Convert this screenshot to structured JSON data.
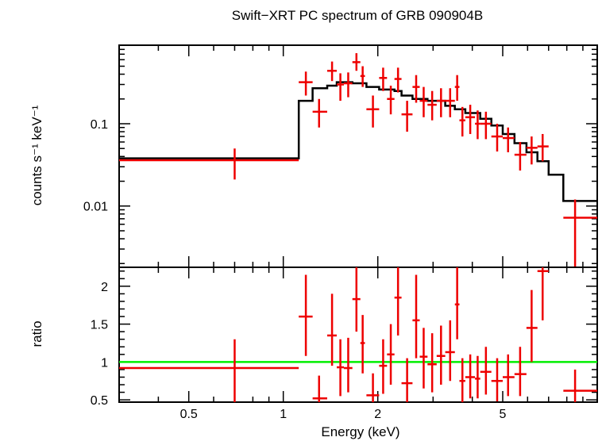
{
  "title": "Swift−XRT PC spectrum of GRB 090904B",
  "colors": {
    "data": "#ee0000",
    "model": "#000000",
    "unity": "#00ee00",
    "axes": "#000000"
  },
  "chart_data": [
    {
      "type": "line",
      "panel": "spectrum",
      "title": "Swift−XRT PC spectrum of GRB 090904B",
      "xlabel": "",
      "ylabel": "counts s⁻¹ keV⁻¹",
      "xscale": "log",
      "yscale": "log",
      "xlim": [
        0.3,
        10
      ],
      "ylim": [
        0.0018,
        0.9
      ],
      "ytick_values": [
        0.01,
        0.1
      ],
      "ytick_labels": [
        "0.01",
        "0.1"
      ],
      "data_points": [
        {
          "x": 0.7,
          "xlo": 0.3,
          "xhi": 1.12,
          "y": 0.036,
          "ylo": 0.021,
          "yhi": 0.05
        },
        {
          "x": 1.18,
          "xlo": 1.12,
          "xhi": 1.24,
          "y": 0.32,
          "ylo": 0.22,
          "yhi": 0.43
        },
        {
          "x": 1.3,
          "xlo": 1.24,
          "xhi": 1.38,
          "y": 0.14,
          "ylo": 0.09,
          "yhi": 0.2
        },
        {
          "x": 1.43,
          "xlo": 1.38,
          "xhi": 1.48,
          "y": 0.44,
          "ylo": 0.33,
          "yhi": 0.57
        },
        {
          "x": 1.52,
          "xlo": 1.48,
          "xhi": 1.56,
          "y": 0.3,
          "ylo": 0.19,
          "yhi": 0.41
        },
        {
          "x": 1.61,
          "xlo": 1.56,
          "xhi": 1.66,
          "y": 0.31,
          "ylo": 0.21,
          "yhi": 0.42
        },
        {
          "x": 1.71,
          "xlo": 1.66,
          "xhi": 1.76,
          "y": 0.56,
          "ylo": 0.44,
          "yhi": 0.72
        },
        {
          "x": 1.79,
          "xlo": 1.76,
          "xhi": 1.82,
          "y": 0.38,
          "ylo": 0.28,
          "yhi": 0.5
        },
        {
          "x": 1.93,
          "xlo": 1.84,
          "xhi": 2.02,
          "y": 0.15,
          "ylo": 0.09,
          "yhi": 0.22
        },
        {
          "x": 2.08,
          "xlo": 2.02,
          "xhi": 2.14,
          "y": 0.36,
          "ylo": 0.25,
          "yhi": 0.48
        },
        {
          "x": 2.2,
          "xlo": 2.14,
          "xhi": 2.26,
          "y": 0.2,
          "ylo": 0.13,
          "yhi": 0.29
        },
        {
          "x": 2.32,
          "xlo": 2.26,
          "xhi": 2.38,
          "y": 0.35,
          "ylo": 0.24,
          "yhi": 0.48
        },
        {
          "x": 2.48,
          "xlo": 2.38,
          "xhi": 2.58,
          "y": 0.13,
          "ylo": 0.08,
          "yhi": 0.19
        },
        {
          "x": 2.65,
          "xlo": 2.58,
          "xhi": 2.72,
          "y": 0.28,
          "ylo": 0.18,
          "yhi": 0.39
        },
        {
          "x": 2.8,
          "xlo": 2.72,
          "xhi": 2.88,
          "y": 0.19,
          "ylo": 0.12,
          "yhi": 0.28
        },
        {
          "x": 2.98,
          "xlo": 2.88,
          "xhi": 3.08,
          "y": 0.17,
          "ylo": 0.11,
          "yhi": 0.25
        },
        {
          "x": 3.18,
          "xlo": 3.08,
          "xhi": 3.28,
          "y": 0.19,
          "ylo": 0.12,
          "yhi": 0.27
        },
        {
          "x": 3.4,
          "xlo": 3.28,
          "xhi": 3.52,
          "y": 0.19,
          "ylo": 0.12,
          "yhi": 0.27
        },
        {
          "x": 3.58,
          "xlo": 3.52,
          "xhi": 3.64,
          "y": 0.28,
          "ylo": 0.19,
          "yhi": 0.39
        },
        {
          "x": 3.72,
          "xlo": 3.64,
          "xhi": 3.8,
          "y": 0.11,
          "ylo": 0.07,
          "yhi": 0.16
        },
        {
          "x": 3.94,
          "xlo": 3.8,
          "xhi": 4.08,
          "y": 0.12,
          "ylo": 0.075,
          "yhi": 0.17
        },
        {
          "x": 4.16,
          "xlo": 4.08,
          "xhi": 4.24,
          "y": 0.1,
          "ylo": 0.065,
          "yhi": 0.145
        },
        {
          "x": 4.42,
          "xlo": 4.24,
          "xhi": 4.6,
          "y": 0.1,
          "ylo": 0.065,
          "yhi": 0.14
        },
        {
          "x": 4.8,
          "xlo": 4.6,
          "xhi": 5.0,
          "y": 0.07,
          "ylo": 0.046,
          "yhi": 0.1
        },
        {
          "x": 5.2,
          "xlo": 5.0,
          "xhi": 5.45,
          "y": 0.067,
          "ylo": 0.045,
          "yhi": 0.09
        },
        {
          "x": 5.68,
          "xlo": 5.45,
          "xhi": 5.95,
          "y": 0.042,
          "ylo": 0.027,
          "yhi": 0.06
        },
        {
          "x": 6.18,
          "xlo": 5.95,
          "xhi": 6.45,
          "y": 0.051,
          "ylo": 0.032,
          "yhi": 0.07
        },
        {
          "x": 6.7,
          "xlo": 6.45,
          "xhi": 7.0,
          "y": 0.053,
          "ylo": 0.035,
          "yhi": 0.075
        },
        {
          "x": 8.5,
          "xlo": 7.8,
          "xhi": 10.0,
          "y": 0.0072,
          "ylo": 0.0018,
          "yhi": 0.012
        }
      ],
      "model_steps": [
        {
          "xlo": 0.3,
          "xhi": 1.12,
          "y": 0.038
        },
        {
          "xlo": 1.12,
          "xhi": 1.24,
          "y": 0.19
        },
        {
          "xlo": 1.24,
          "xhi": 1.38,
          "y": 0.27
        },
        {
          "xlo": 1.38,
          "xhi": 1.48,
          "y": 0.29
        },
        {
          "xlo": 1.48,
          "xhi": 1.66,
          "y": 0.32
        },
        {
          "xlo": 1.66,
          "xhi": 1.84,
          "y": 0.31
        },
        {
          "xlo": 1.84,
          "xhi": 2.02,
          "y": 0.28
        },
        {
          "xlo": 2.02,
          "xhi": 2.26,
          "y": 0.26
        },
        {
          "xlo": 2.26,
          "xhi": 2.38,
          "y": 0.25
        },
        {
          "xlo": 2.38,
          "xhi": 2.58,
          "y": 0.22
        },
        {
          "xlo": 2.58,
          "xhi": 2.88,
          "y": 0.2
        },
        {
          "xlo": 2.88,
          "xhi": 3.28,
          "y": 0.19
        },
        {
          "xlo": 3.28,
          "xhi": 3.52,
          "y": 0.165
        },
        {
          "xlo": 3.52,
          "xhi": 3.8,
          "y": 0.15
        },
        {
          "xlo": 3.8,
          "xhi": 4.24,
          "y": 0.135
        },
        {
          "xlo": 4.24,
          "xhi": 4.6,
          "y": 0.115
        },
        {
          "xlo": 4.6,
          "xhi": 5.0,
          "y": 0.095
        },
        {
          "xlo": 5.0,
          "xhi": 5.45,
          "y": 0.075
        },
        {
          "xlo": 5.45,
          "xhi": 5.95,
          "y": 0.058
        },
        {
          "xlo": 5.95,
          "xhi": 6.45,
          "y": 0.045
        },
        {
          "xlo": 6.45,
          "xhi": 7.0,
          "y": 0.035
        },
        {
          "xlo": 7.0,
          "xhi": 7.8,
          "y": 0.024
        },
        {
          "xlo": 7.8,
          "xhi": 10.0,
          "y": 0.0115
        }
      ]
    },
    {
      "type": "line",
      "panel": "ratio",
      "xlabel": "Energy (keV)",
      "ylabel": "ratio",
      "xscale": "log",
      "yscale": "linear",
      "xlim": [
        0.3,
        10
      ],
      "ylim": [
        0.47,
        2.25
      ],
      "xtick_values": [
        0.5,
        1,
        2,
        5
      ],
      "xtick_labels": [
        "0.5",
        "1",
        "2",
        "5"
      ],
      "ytick_values": [
        0.5,
        1,
        1.5,
        2
      ],
      "ytick_labels": [
        "0.5",
        "1",
        "1.5",
        "2"
      ],
      "unity_line": 1,
      "data_points": [
        {
          "x": 0.7,
          "xlo": 0.3,
          "xhi": 1.12,
          "y": 0.92,
          "ylo": 0.47,
          "yhi": 1.3
        },
        {
          "x": 1.18,
          "xlo": 1.12,
          "xhi": 1.24,
          "y": 1.6,
          "ylo": 1.08,
          "yhi": 2.15
        },
        {
          "x": 1.3,
          "xlo": 1.24,
          "xhi": 1.38,
          "y": 0.52,
          "ylo": 0.47,
          "yhi": 0.82
        },
        {
          "x": 1.43,
          "xlo": 1.38,
          "xhi": 1.48,
          "y": 1.35,
          "ylo": 0.95,
          "yhi": 1.9
        },
        {
          "x": 1.52,
          "xlo": 1.48,
          "xhi": 1.56,
          "y": 0.93,
          "ylo": 0.55,
          "yhi": 1.3
        },
        {
          "x": 1.61,
          "xlo": 1.56,
          "xhi": 1.66,
          "y": 0.92,
          "ylo": 0.6,
          "yhi": 1.32
        },
        {
          "x": 1.71,
          "xlo": 1.66,
          "xhi": 1.76,
          "y": 1.83,
          "ylo": 1.4,
          "yhi": 2.25
        },
        {
          "x": 1.79,
          "xlo": 1.76,
          "xhi": 1.82,
          "y": 1.25,
          "ylo": 0.85,
          "yhi": 1.62
        },
        {
          "x": 1.93,
          "xlo": 1.84,
          "xhi": 2.02,
          "y": 0.56,
          "ylo": 0.47,
          "yhi": 0.85
        },
        {
          "x": 2.08,
          "xlo": 2.02,
          "xhi": 2.14,
          "y": 0.95,
          "ylo": 0.58,
          "yhi": 1.3
        },
        {
          "x": 2.2,
          "xlo": 2.14,
          "xhi": 2.26,
          "y": 1.1,
          "ylo": 0.7,
          "yhi": 1.5
        },
        {
          "x": 2.32,
          "xlo": 2.26,
          "xhi": 2.38,
          "y": 1.85,
          "ylo": 1.35,
          "yhi": 2.25
        },
        {
          "x": 2.48,
          "xlo": 2.38,
          "xhi": 2.58,
          "y": 0.72,
          "ylo": 0.47,
          "yhi": 1.05
        },
        {
          "x": 2.65,
          "xlo": 2.58,
          "xhi": 2.72,
          "y": 1.55,
          "ylo": 1.05,
          "yhi": 2.15
        },
        {
          "x": 2.8,
          "xlo": 2.72,
          "xhi": 2.88,
          "y": 1.07,
          "ylo": 0.65,
          "yhi": 1.45
        },
        {
          "x": 2.98,
          "xlo": 2.88,
          "xhi": 3.08,
          "y": 0.97,
          "ylo": 0.6,
          "yhi": 1.38
        },
        {
          "x": 3.18,
          "xlo": 3.08,
          "xhi": 3.28,
          "y": 1.08,
          "ylo": 0.7,
          "yhi": 1.48
        },
        {
          "x": 3.4,
          "xlo": 3.28,
          "xhi": 3.52,
          "y": 1.13,
          "ylo": 0.75,
          "yhi": 1.55
        },
        {
          "x": 3.58,
          "xlo": 3.52,
          "xhi": 3.64,
          "y": 1.76,
          "ylo": 1.3,
          "yhi": 2.25
        },
        {
          "x": 3.72,
          "xlo": 3.64,
          "xhi": 3.8,
          "y": 0.75,
          "ylo": 0.47,
          "yhi": 1.05
        },
        {
          "x": 3.94,
          "xlo": 3.8,
          "xhi": 4.08,
          "y": 0.8,
          "ylo": 0.52,
          "yhi": 1.1
        },
        {
          "x": 4.16,
          "xlo": 4.08,
          "xhi": 4.24,
          "y": 0.78,
          "ylo": 0.52,
          "yhi": 1.08
        },
        {
          "x": 4.42,
          "xlo": 4.24,
          "xhi": 4.6,
          "y": 0.87,
          "ylo": 0.57,
          "yhi": 1.2
        },
        {
          "x": 4.8,
          "xlo": 4.6,
          "xhi": 5.0,
          "y": 0.75,
          "ylo": 0.48,
          "yhi": 1.05
        },
        {
          "x": 5.2,
          "xlo": 5.0,
          "xhi": 5.45,
          "y": 0.8,
          "ylo": 0.55,
          "yhi": 1.1
        },
        {
          "x": 5.68,
          "xlo": 5.45,
          "xhi": 5.95,
          "y": 0.84,
          "ylo": 0.55,
          "yhi": 1.2
        },
        {
          "x": 6.18,
          "xlo": 5.95,
          "xhi": 6.45,
          "y": 1.45,
          "ylo": 1.0,
          "yhi": 1.95
        },
        {
          "x": 6.7,
          "xlo": 6.45,
          "xhi": 7.0,
          "y": 2.2,
          "ylo": 1.55,
          "yhi": 2.25
        },
        {
          "x": 8.5,
          "xlo": 7.8,
          "xhi": 10.0,
          "y": 0.62,
          "ylo": 0.47,
          "yhi": 0.9
        }
      ]
    }
  ]
}
